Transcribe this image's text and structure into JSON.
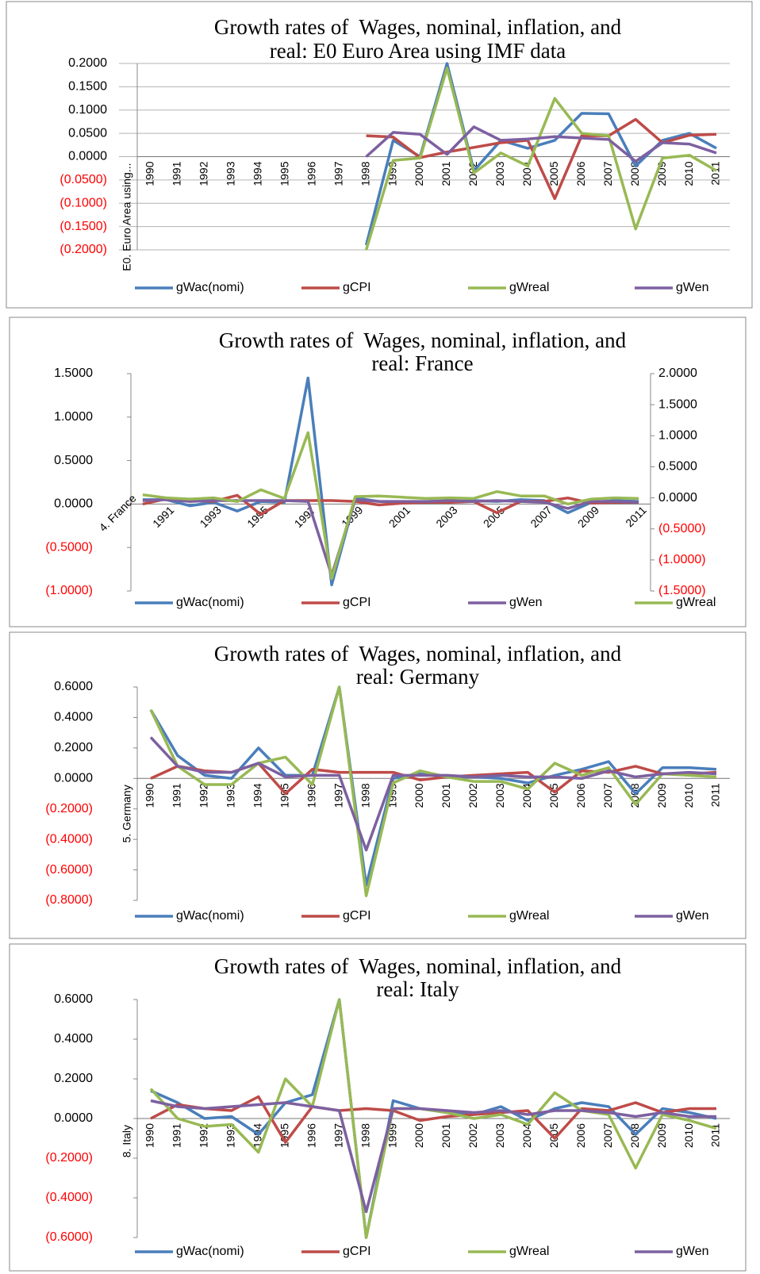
{
  "chart_data": [
    {
      "type": "line",
      "title": [
        "Growth rates of  Wages, nominal, inflation, and",
        "real: E0 Euro Area using IMF data"
      ],
      "xlabel": "E0. Euro Area using...",
      "categories": [
        "1990",
        "1991",
        "1992",
        "1993",
        "1994",
        "1995",
        "1996",
        "1997",
        "1998",
        "1999",
        "2000",
        "2001",
        "2002",
        "2003",
        "2004",
        "2005",
        "2006",
        "2007",
        "2008",
        "2009",
        "2010",
        "2011"
      ],
      "series": [
        {
          "name": "gWac(nomi)",
          "color": "#4a7ebb",
          "values": [
            null,
            null,
            null,
            null,
            null,
            null,
            null,
            null,
            -0.19,
            0.035,
            0.0,
            0.2,
            -0.03,
            0.035,
            0.018,
            0.035,
            0.093,
            0.092,
            -0.02,
            0.035,
            0.05,
            0.018
          ]
        },
        {
          "name": "gCPI",
          "color": "#be4b48",
          "values": [
            null,
            null,
            null,
            null,
            null,
            null,
            null,
            null,
            0.045,
            0.042,
            -0.002,
            0.01,
            0.02,
            0.03,
            0.035,
            -0.09,
            0.045,
            0.045,
            0.08,
            0.03,
            0.046,
            0.048
          ]
        },
        {
          "name": "gWreal",
          "color": "#98b954",
          "values": [
            null,
            null,
            null,
            null,
            null,
            null,
            null,
            null,
            -0.2,
            -0.008,
            -0.003,
            0.19,
            -0.035,
            0.008,
            -0.02,
            0.125,
            0.05,
            0.045,
            -0.155,
            -0.003,
            0.003,
            -0.03
          ]
        },
        {
          "name": "gWen",
          "color": "#7d60a0",
          "values": [
            null,
            null,
            null,
            null,
            null,
            null,
            null,
            null,
            0.0,
            0.052,
            0.048,
            0.005,
            0.064,
            0.035,
            0.038,
            0.043,
            0.04,
            0.037,
            -0.01,
            0.03,
            0.027,
            0.008
          ]
        }
      ],
      "ylim": [
        -0.2,
        0.2
      ],
      "yticks": [
        {
          "value": 0.2,
          "label": "0.2000"
        },
        {
          "value": 0.15,
          "label": "0.1500"
        },
        {
          "value": 0.1,
          "label": "0.1000"
        },
        {
          "value": 0.05,
          "label": "0.0500"
        },
        {
          "value": 0,
          "label": "0.0000"
        },
        {
          "value": -0.05,
          "label": "(0.0500)"
        },
        {
          "value": -0.1,
          "label": "(0.1000)"
        },
        {
          "value": -0.15,
          "label": "(0.1500)"
        },
        {
          "value": -0.2,
          "label": "(0.2000)"
        }
      ],
      "grid": true,
      "legend": "bottom",
      "negative_tick_color": "#ff0000"
    },
    {
      "type": "line",
      "title": [
        "Growth rates of  Wages, nominal, inflation, and",
        "real: France"
      ],
      "xlabel": "4. France",
      "categories": [
        null,
        "1991",
        null,
        "1993",
        null,
        "1995",
        null,
        "1997",
        null,
        "1999",
        null,
        "2001",
        null,
        "2003",
        null,
        "2005",
        null,
        "2007",
        null,
        "2009",
        null,
        "2011"
      ],
      "series": [
        {
          "name": "gWac(nomi)",
          "color": "#4a7ebb",
          "values": [
            0.05,
            0.05,
            -0.02,
            0.02,
            -0.08,
            0.03,
            0.02,
            1.45,
            -0.93,
            0.07,
            0.03,
            0.02,
            0.02,
            0.03,
            0.04,
            0.03,
            0.05,
            0.04,
            -0.1,
            0.02,
            0.04,
            0.03
          ]
        },
        {
          "name": "gCPI",
          "color": "#be4b48",
          "values": [
            0.0,
            0.06,
            0.04,
            0.03,
            0.1,
            -0.12,
            0.04,
            0.04,
            0.04,
            0.03,
            -0.01,
            0.01,
            0.02,
            0.02,
            0.03,
            -0.1,
            0.03,
            0.03,
            0.07,
            0.01,
            0.02,
            0.02
          ]
        },
        {
          "name": "gWen",
          "color": "#7d60a0",
          "values": [
            0.04,
            0.05,
            0.03,
            0.04,
            0.04,
            0.04,
            0.04,
            0.03,
            -0.82,
            0.05,
            0.03,
            0.03,
            0.03,
            0.04,
            0.03,
            0.04,
            0.03,
            0.02,
            -0.05,
            0.03,
            0.03,
            0.02
          ]
        },
        {
          "name": "gWreal",
          "color": "#98b954",
          "axis": "y2",
          "values": [
            0.05,
            0.0,
            -0.02,
            0.0,
            -0.06,
            0.13,
            -0.01,
            1.05,
            -1.3,
            0.02,
            0.03,
            0.01,
            -0.01,
            0.0,
            -0.01,
            0.1,
            0.03,
            0.03,
            -0.1,
            -0.02,
            0.0,
            -0.01
          ]
        }
      ],
      "ylim": [
        -1.0,
        1.5
      ],
      "yticks": [
        {
          "value": 1.5,
          "label": "1.5000"
        },
        {
          "value": 1.0,
          "label": "1.0000"
        },
        {
          "value": 0.5,
          "label": "0.5000"
        },
        {
          "value": 0,
          "label": "0.0000"
        },
        {
          "value": -0.5,
          "label": "(0.5000)"
        },
        {
          "value": -1.0,
          "label": "(1.0000)"
        }
      ],
      "y2lim": [
        -1.5,
        2.0
      ],
      "y2ticks": [
        {
          "value": 2.0,
          "label": "2.0000"
        },
        {
          "value": 1.5,
          "label": "1.5000"
        },
        {
          "value": 1.0,
          "label": "1.0000"
        },
        {
          "value": 0.5,
          "label": "0.5000"
        },
        {
          "value": 0,
          "label": "0.0000"
        },
        {
          "value": -0.5,
          "label": "(0.5000)"
        },
        {
          "value": -1.0,
          "label": "(1.0000)"
        },
        {
          "value": -1.5,
          "label": "(1.5000)"
        }
      ],
      "grid": false,
      "legend": "bottom",
      "negative_tick_color": "#ff0000"
    },
    {
      "type": "line",
      "title": [
        "Growth rates of  Wages, nominal, inflation, and",
        "real: Germany"
      ],
      "xlabel": "5. Germany",
      "categories": [
        "1990",
        "1991",
        "1992",
        "1993",
        "1994",
        "1995",
        "1996",
        "1997",
        "1998",
        "1999",
        "2000",
        "2001",
        "2002",
        "2003",
        "2004",
        "2005",
        "2006",
        "2007",
        "2008",
        "2009",
        "2010",
        "2011"
      ],
      "series": [
        {
          "name": "gWac(nomi)",
          "color": "#4a7ebb",
          "values": [
            0.45,
            0.15,
            0.02,
            0.0,
            0.2,
            0.02,
            0.02,
            0.6,
            -0.7,
            0.0,
            0.03,
            0.01,
            0.01,
            0.0,
            -0.03,
            0.02,
            0.06,
            0.11,
            -0.1,
            0.07,
            0.07,
            0.06
          ]
        },
        {
          "name": "gCPI",
          "color": "#be4b48",
          "values": [
            0.0,
            0.08,
            0.05,
            0.04,
            0.1,
            -0.1,
            0.06,
            0.04,
            0.04,
            0.04,
            -0.01,
            0.01,
            0.02,
            0.03,
            0.04,
            -0.09,
            0.05,
            0.04,
            0.08,
            0.03,
            0.03,
            0.04
          ]
        },
        {
          "name": "gWreal",
          "color": "#98b954",
          "values": [
            0.45,
            0.08,
            -0.04,
            -0.04,
            0.1,
            0.14,
            -0.04,
            0.6,
            -0.77,
            -0.03,
            0.05,
            0.01,
            -0.02,
            -0.02,
            -0.07,
            0.1,
            0.02,
            0.07,
            -0.17,
            0.03,
            0.02,
            0.01
          ]
        },
        {
          "name": "gWen",
          "color": "#7d60a0",
          "values": [
            0.27,
            0.08,
            0.04,
            0.04,
            0.1,
            0.01,
            0.02,
            0.02,
            -0.47,
            0.02,
            0.02,
            0.02,
            0.01,
            0.02,
            0.01,
            0.01,
            0.0,
            0.05,
            0.01,
            0.03,
            0.04,
            0.03
          ]
        }
      ],
      "ylim": [
        -0.8,
        0.6
      ],
      "yticks": [
        {
          "value": 0.6,
          "label": "0.6000"
        },
        {
          "value": 0.4,
          "label": "0.4000"
        },
        {
          "value": 0.2,
          "label": "0.2000"
        },
        {
          "value": 0,
          "label": "0.0000"
        },
        {
          "value": -0.2,
          "label": "(0.2000)"
        },
        {
          "value": -0.4,
          "label": "(0.4000)"
        },
        {
          "value": -0.6,
          "label": "(0.6000)"
        },
        {
          "value": -0.8,
          "label": "(0.8000)"
        }
      ],
      "grid": false,
      "legend": "bottom",
      "negative_tick_color": "#ff0000"
    },
    {
      "type": "line",
      "title": [
        "Growth rates of  Wages, nominal, inflation, and",
        "real: Italy"
      ],
      "xlabel": "8. Italy",
      "categories": [
        "1990",
        "1991",
        "1992",
        "1993",
        "1994",
        "1995",
        "1996",
        "1997",
        "1998",
        "1999",
        "2000",
        "2001",
        "2002",
        "2003",
        "2004",
        "2005",
        "2006",
        "2007",
        "2008",
        "2009",
        "2010",
        "2011"
      ],
      "series": [
        {
          "name": "gWac(nomi)",
          "color": "#4a7ebb",
          "values": [
            0.14,
            0.08,
            0.0,
            0.01,
            -0.08,
            0.08,
            0.12,
            0.6,
            -0.6,
            0.09,
            0.05,
            0.03,
            0.02,
            0.06,
            -0.01,
            0.05,
            0.08,
            0.06,
            -0.08,
            0.05,
            0.03,
            0.0
          ]
        },
        {
          "name": "gCPI",
          "color": "#be4b48",
          "values": [
            0.0,
            0.07,
            0.05,
            0.04,
            0.11,
            -0.12,
            0.06,
            0.04,
            0.05,
            0.04,
            -0.01,
            0.01,
            0.02,
            0.03,
            0.04,
            -0.1,
            0.05,
            0.04,
            0.08,
            0.03,
            0.05,
            0.05
          ]
        },
        {
          "name": "gWreal",
          "color": "#98b954",
          "values": [
            0.15,
            0.0,
            -0.04,
            -0.03,
            -0.17,
            0.2,
            0.06,
            0.6,
            -0.6,
            0.05,
            0.05,
            0.03,
            0.0,
            0.02,
            -0.03,
            0.13,
            0.04,
            0.02,
            -0.25,
            0.02,
            -0.01,
            -0.05
          ]
        },
        {
          "name": "gWen",
          "color": "#7d60a0",
          "values": [
            0.09,
            0.06,
            0.05,
            0.06,
            0.07,
            0.08,
            0.06,
            0.04,
            -0.47,
            0.05,
            0.05,
            0.04,
            0.03,
            0.04,
            0.02,
            0.04,
            0.04,
            0.03,
            0.01,
            0.03,
            0.01,
            0.01
          ]
        }
      ],
      "ylim": [
        -0.6,
        0.6
      ],
      "yticks": [
        {
          "value": 0.6,
          "label": "0.6000"
        },
        {
          "value": 0.4,
          "label": "0.4000"
        },
        {
          "value": 0.2,
          "label": "0.2000"
        },
        {
          "value": 0,
          "label": "0.0000"
        },
        {
          "value": -0.2,
          "label": "(0.2000)"
        },
        {
          "value": -0.4,
          "label": "(0.4000)"
        },
        {
          "value": -0.6,
          "label": "(0.6000)"
        }
      ],
      "grid": false,
      "legend": "bottom",
      "negative_tick_color": "#ff0000"
    }
  ]
}
